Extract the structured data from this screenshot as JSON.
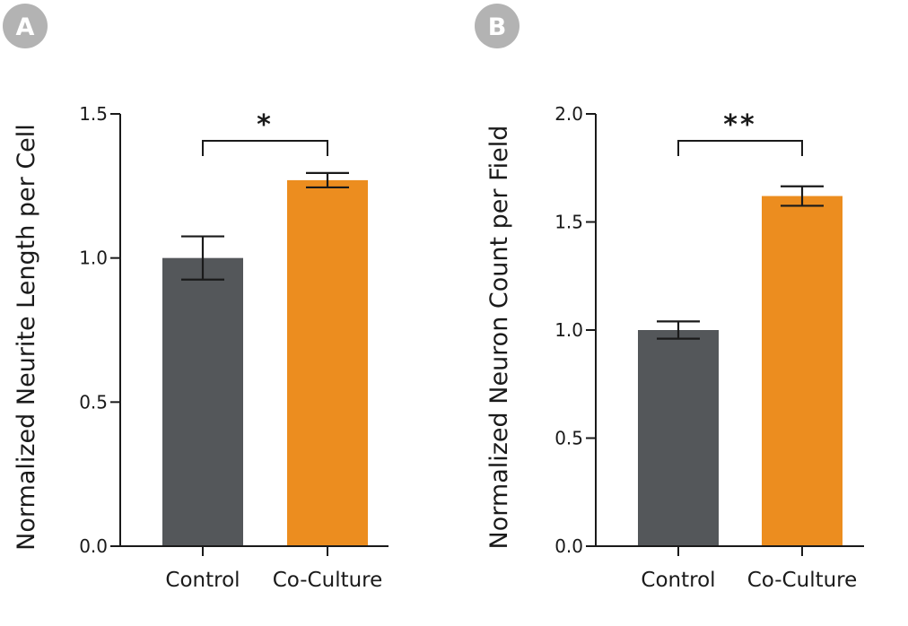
{
  "panels": [
    {
      "letter": "A",
      "badge_color": "#b3b3b3"
    },
    {
      "letter": "B",
      "badge_color": "#b3b3b3"
    }
  ],
  "chart_data": [
    {
      "type": "bar",
      "panel": "A",
      "ylabel": "Normalized Neurite Length per Cell",
      "xlabel": "",
      "categories": [
        "Control",
        "Co-Culture"
      ],
      "values": [
        1.0,
        1.27
      ],
      "error": [
        0.075,
        0.025
      ],
      "colors": [
        "#54575a",
        "#ec8d1f"
      ],
      "ylim": [
        0,
        1.5
      ],
      "yticks": [
        0.0,
        0.5,
        1.0,
        1.5
      ],
      "ytick_labels": [
        "0.0",
        "0.5",
        "1.0",
        "1.5"
      ],
      "significance": "*",
      "grid": false
    },
    {
      "type": "bar",
      "panel": "B",
      "ylabel": "Normalized Neuron Count per Field",
      "xlabel": "",
      "categories": [
        "Control",
        "Co-Culture"
      ],
      "values": [
        1.0,
        1.62
      ],
      "error": [
        0.04,
        0.045
      ],
      "colors": [
        "#54575a",
        "#ec8d1f"
      ],
      "ylim": [
        0,
        2.0
      ],
      "yticks": [
        0.0,
        0.5,
        1.0,
        1.5,
        2.0
      ],
      "ytick_labels": [
        "0.0",
        "0.5",
        "1.0",
        "1.5",
        "2.0"
      ],
      "significance": "**",
      "grid": false
    }
  ]
}
